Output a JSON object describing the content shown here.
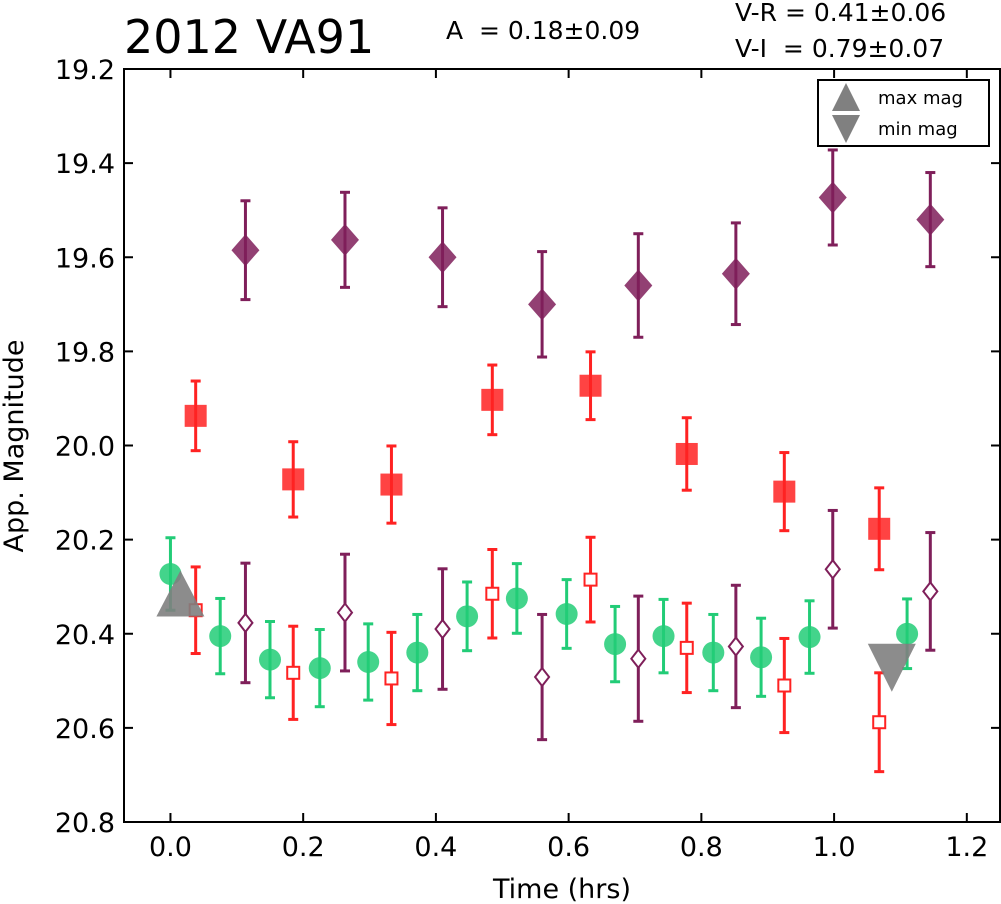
{
  "header": {
    "title": "2012 VA91",
    "amplitude": "A  = 0.18±0.09",
    "vr": "V-R = 0.41±0.06",
    "vi": "V-I  = 0.79±0.07"
  },
  "chart_data": {
    "type": "scatter",
    "title": "2012 VA91",
    "xlabel": "Time (hrs)",
    "ylabel": "App. Magnitude",
    "xlim": [
      -0.07,
      1.25
    ],
    "ylim": [
      20.8,
      19.2
    ],
    "y_inverted": true,
    "xticks": [
      0.0,
      0.2,
      0.4,
      0.6,
      0.8,
      1.0,
      1.2
    ],
    "xtick_labels": [
      "0.0",
      "0.2",
      "0.4",
      "0.6",
      "0.8",
      "1.0",
      "1.2"
    ],
    "yticks": [
      19.2,
      19.4,
      19.6,
      19.8,
      20.0,
      20.2,
      20.4,
      20.6,
      20.8
    ],
    "ytick_labels": [
      "19.2",
      "19.4",
      "19.6",
      "19.8",
      "20.0",
      "20.2",
      "20.4",
      "20.6",
      "20.8"
    ],
    "legend": {
      "position": "top-right",
      "entries": [
        "max mag",
        "min mag"
      ]
    },
    "series": [
      {
        "color": "#7f1f5a",
        "marker": "diamond-filled",
        "points": [
          {
            "x": 0.113,
            "y": 19.585,
            "err": 0.105
          },
          {
            "x": 0.263,
            "y": 19.563,
            "err": 0.101
          },
          {
            "x": 0.41,
            "y": 19.6,
            "err": 0.105
          },
          {
            "x": 0.56,
            "y": 19.7,
            "err": 0.112
          },
          {
            "x": 0.705,
            "y": 19.66,
            "err": 0.11
          },
          {
            "x": 0.852,
            "y": 19.635,
            "err": 0.108
          },
          {
            "x": 0.998,
            "y": 19.473,
            "err": 0.101
          },
          {
            "x": 1.145,
            "y": 19.52,
            "err": 0.1
          }
        ]
      },
      {
        "color": "#ff2222",
        "marker": "square-filled",
        "points": [
          {
            "x": 0.038,
            "y": 19.937,
            "err": 0.074
          },
          {
            "x": 0.185,
            "y": 20.072,
            "err": 0.08
          },
          {
            "x": 0.333,
            "y": 20.083,
            "err": 0.082
          },
          {
            "x": 0.485,
            "y": 19.903,
            "err": 0.074
          },
          {
            "x": 0.633,
            "y": 19.873,
            "err": 0.072
          },
          {
            "x": 0.778,
            "y": 20.018,
            "err": 0.077
          },
          {
            "x": 0.925,
            "y": 20.098,
            "err": 0.083
          },
          {
            "x": 1.068,
            "y": 20.177,
            "err": 0.087
          }
        ]
      },
      {
        "color": "#22cc77",
        "marker": "circle-filled",
        "points": [
          {
            "x": 0.0,
            "y": 20.273,
            "err": 0.077
          },
          {
            "x": 0.075,
            "y": 20.405,
            "err": 0.08
          },
          {
            "x": 0.15,
            "y": 20.455,
            "err": 0.081
          },
          {
            "x": 0.225,
            "y": 20.473,
            "err": 0.082
          },
          {
            "x": 0.298,
            "y": 20.46,
            "err": 0.081
          },
          {
            "x": 0.372,
            "y": 20.44,
            "err": 0.081
          },
          {
            "x": 0.447,
            "y": 20.363,
            "err": 0.073
          },
          {
            "x": 0.522,
            "y": 20.325,
            "err": 0.074
          },
          {
            "x": 0.597,
            "y": 20.358,
            "err": 0.073
          },
          {
            "x": 0.67,
            "y": 20.422,
            "err": 0.08
          },
          {
            "x": 0.743,
            "y": 20.405,
            "err": 0.078
          },
          {
            "x": 0.818,
            "y": 20.44,
            "err": 0.081
          },
          {
            "x": 0.89,
            "y": 20.45,
            "err": 0.083
          },
          {
            "x": 0.963,
            "y": 20.407,
            "err": 0.077
          },
          {
            "x": 1.11,
            "y": 20.4,
            "err": 0.074
          }
        ]
      },
      {
        "color": "#ff2222",
        "marker": "square-open",
        "points": [
          {
            "x": 0.038,
            "y": 20.35,
            "err": 0.092
          },
          {
            "x": 0.185,
            "y": 20.483,
            "err": 0.099
          },
          {
            "x": 0.333,
            "y": 20.495,
            "err": 0.098
          },
          {
            "x": 0.485,
            "y": 20.315,
            "err": 0.094
          },
          {
            "x": 0.633,
            "y": 20.285,
            "err": 0.09
          },
          {
            "x": 0.778,
            "y": 20.43,
            "err": 0.095
          },
          {
            "x": 0.925,
            "y": 20.51,
            "err": 0.1
          },
          {
            "x": 1.068,
            "y": 20.588,
            "err": 0.105
          }
        ]
      },
      {
        "color": "#7f1f5a",
        "marker": "diamond-open",
        "points": [
          {
            "x": 0.113,
            "y": 20.377,
            "err": 0.127
          },
          {
            "x": 0.263,
            "y": 20.355,
            "err": 0.124
          },
          {
            "x": 0.41,
            "y": 20.39,
            "err": 0.128
          },
          {
            "x": 0.56,
            "y": 20.492,
            "err": 0.133
          },
          {
            "x": 0.705,
            "y": 20.453,
            "err": 0.133
          },
          {
            "x": 0.852,
            "y": 20.427,
            "err": 0.13
          },
          {
            "x": 0.998,
            "y": 20.263,
            "err": 0.125
          },
          {
            "x": 1.145,
            "y": 20.31,
            "err": 0.125
          }
        ]
      },
      {
        "color": "#808080",
        "marker": "triangle-up",
        "points": [
          {
            "x": 0.015,
            "y": 20.325
          }
        ]
      },
      {
        "color": "#808080",
        "marker": "triangle-down",
        "points": [
          {
            "x": 1.087,
            "y": 20.485
          }
        ]
      }
    ]
  }
}
